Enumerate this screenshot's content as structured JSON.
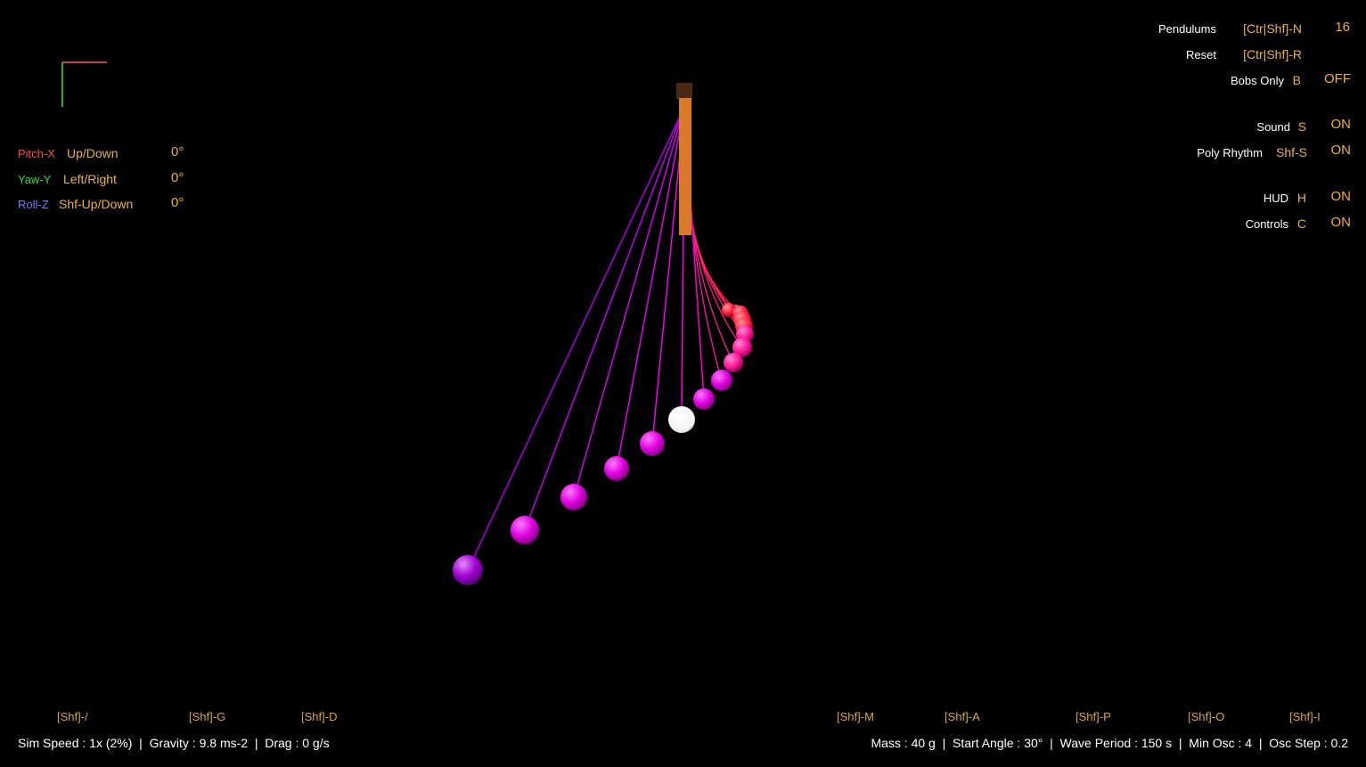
{
  "axes_gizmo": {
    "x_color": "#ff5a5a",
    "y_color": "#3ee83e"
  },
  "rotation": {
    "rows": [
      {
        "name": "Pitch-X",
        "name_color": "#ff4d4d",
        "key": "Up/Down",
        "value": "0°"
      },
      {
        "name": "Yaw-Y",
        "name_color": "#39d839",
        "key": "Left/Right",
        "value": "0°"
      },
      {
        "name": "Roll-Z",
        "name_color": "#7a7aff",
        "key": "Shf-Up/Down",
        "value": "0°"
      }
    ]
  },
  "hud": {
    "pendulums": {
      "label": "Pendulums",
      "key": "[Ctr|Shf]-N",
      "value": "16"
    },
    "reset": {
      "label": "Reset",
      "key": "[Ctr|Shf]-R"
    },
    "bobs_only": {
      "label": "Bobs Only",
      "key": "B",
      "value": "OFF"
    },
    "sound": {
      "label": "Sound",
      "key": "S",
      "value": "ON"
    },
    "poly_rhythm": {
      "label": "Poly Rhythm",
      "key": "Shf-S",
      "value": "ON"
    },
    "hud": {
      "label": "HUD",
      "key": "H",
      "value": "ON"
    },
    "controls": {
      "label": "Controls",
      "key": "C",
      "value": "ON"
    }
  },
  "bottom_keys": {
    "sim_speed": "[Shf]-/",
    "gravity": "[Shf]-G",
    "drag": "[Shf]-D",
    "mass": "[Shf]-M",
    "start_angle": "[Shf]-A",
    "wave_period": "[Shf]-P",
    "min_osc": "[Shf]-O",
    "osc_step": "[Shf]-I"
  },
  "bottom_left_text": "Sim Speed : 1x (2%)  |  Gravity : 9.8 ms-2  |  Drag : 0 g/s",
  "bottom_right_text": "Mass : 40 g  |  Start Angle : 30°  |  Wave Period : 150 s  |  Min Osc : 4  |  Osc Step : 0.2",
  "scene": {
    "pendulum_count": 16,
    "bob_color_near": "#ff00ff",
    "bob_color_far": "#ff1a1a",
    "selected_bob_color": "#ffffff",
    "support_color": "#d97a2a"
  }
}
